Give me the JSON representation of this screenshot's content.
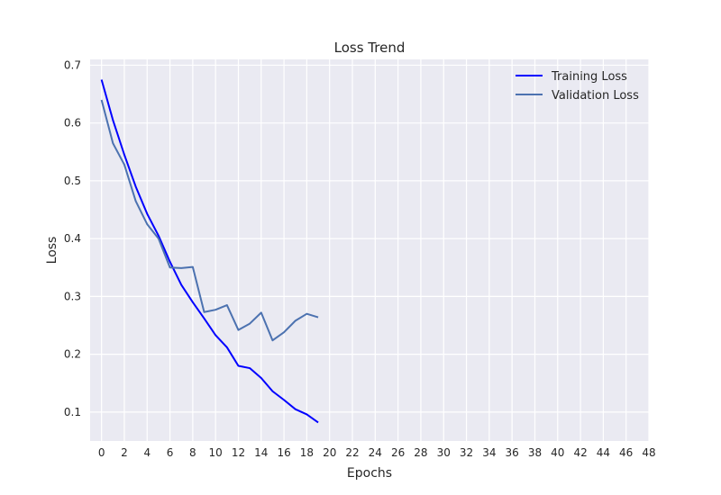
{
  "chart_data": {
    "type": "line",
    "title": "Loss Trend",
    "xlabel": "Epochs",
    "ylabel": "Loss",
    "xlim": [
      -1,
      48
    ],
    "ylim": [
      0.05,
      0.71
    ],
    "xticks": [
      0,
      2,
      4,
      6,
      8,
      10,
      12,
      14,
      16,
      18,
      20,
      22,
      24,
      26,
      28,
      30,
      32,
      34,
      36,
      38,
      40,
      42,
      44,
      46,
      48
    ],
    "yticks": [
      0.1,
      0.2,
      0.3,
      0.4,
      0.5,
      0.6,
      0.7
    ],
    "yticks_labels": [
      "0.1",
      "0.2",
      "0.3",
      "0.4",
      "0.5",
      "0.6",
      "0.7"
    ],
    "grid": true,
    "legend": "top-right",
    "x": [
      0,
      1,
      2,
      3,
      4,
      5,
      6,
      7,
      8,
      9,
      10,
      11,
      12,
      13,
      14,
      15,
      16,
      17,
      18,
      19
    ],
    "series": [
      {
        "name": "Training Loss",
        "color": "#0000ff",
        "values": [
          0.675,
          0.605,
          0.545,
          0.49,
          0.443,
          0.405,
          0.36,
          0.32,
          0.29,
          0.262,
          0.233,
          0.212,
          0.18,
          0.176,
          0.159,
          0.136,
          0.121,
          0.105,
          0.096,
          0.082
        ]
      },
      {
        "name": "Validation Loss",
        "color": "#4c72b0",
        "values": [
          0.64,
          0.565,
          0.528,
          0.465,
          0.425,
          0.4,
          0.35,
          0.349,
          0.351,
          0.273,
          0.277,
          0.285,
          0.242,
          0.253,
          0.272,
          0.224,
          0.238,
          0.258,
          0.27,
          0.264
        ]
      }
    ]
  }
}
